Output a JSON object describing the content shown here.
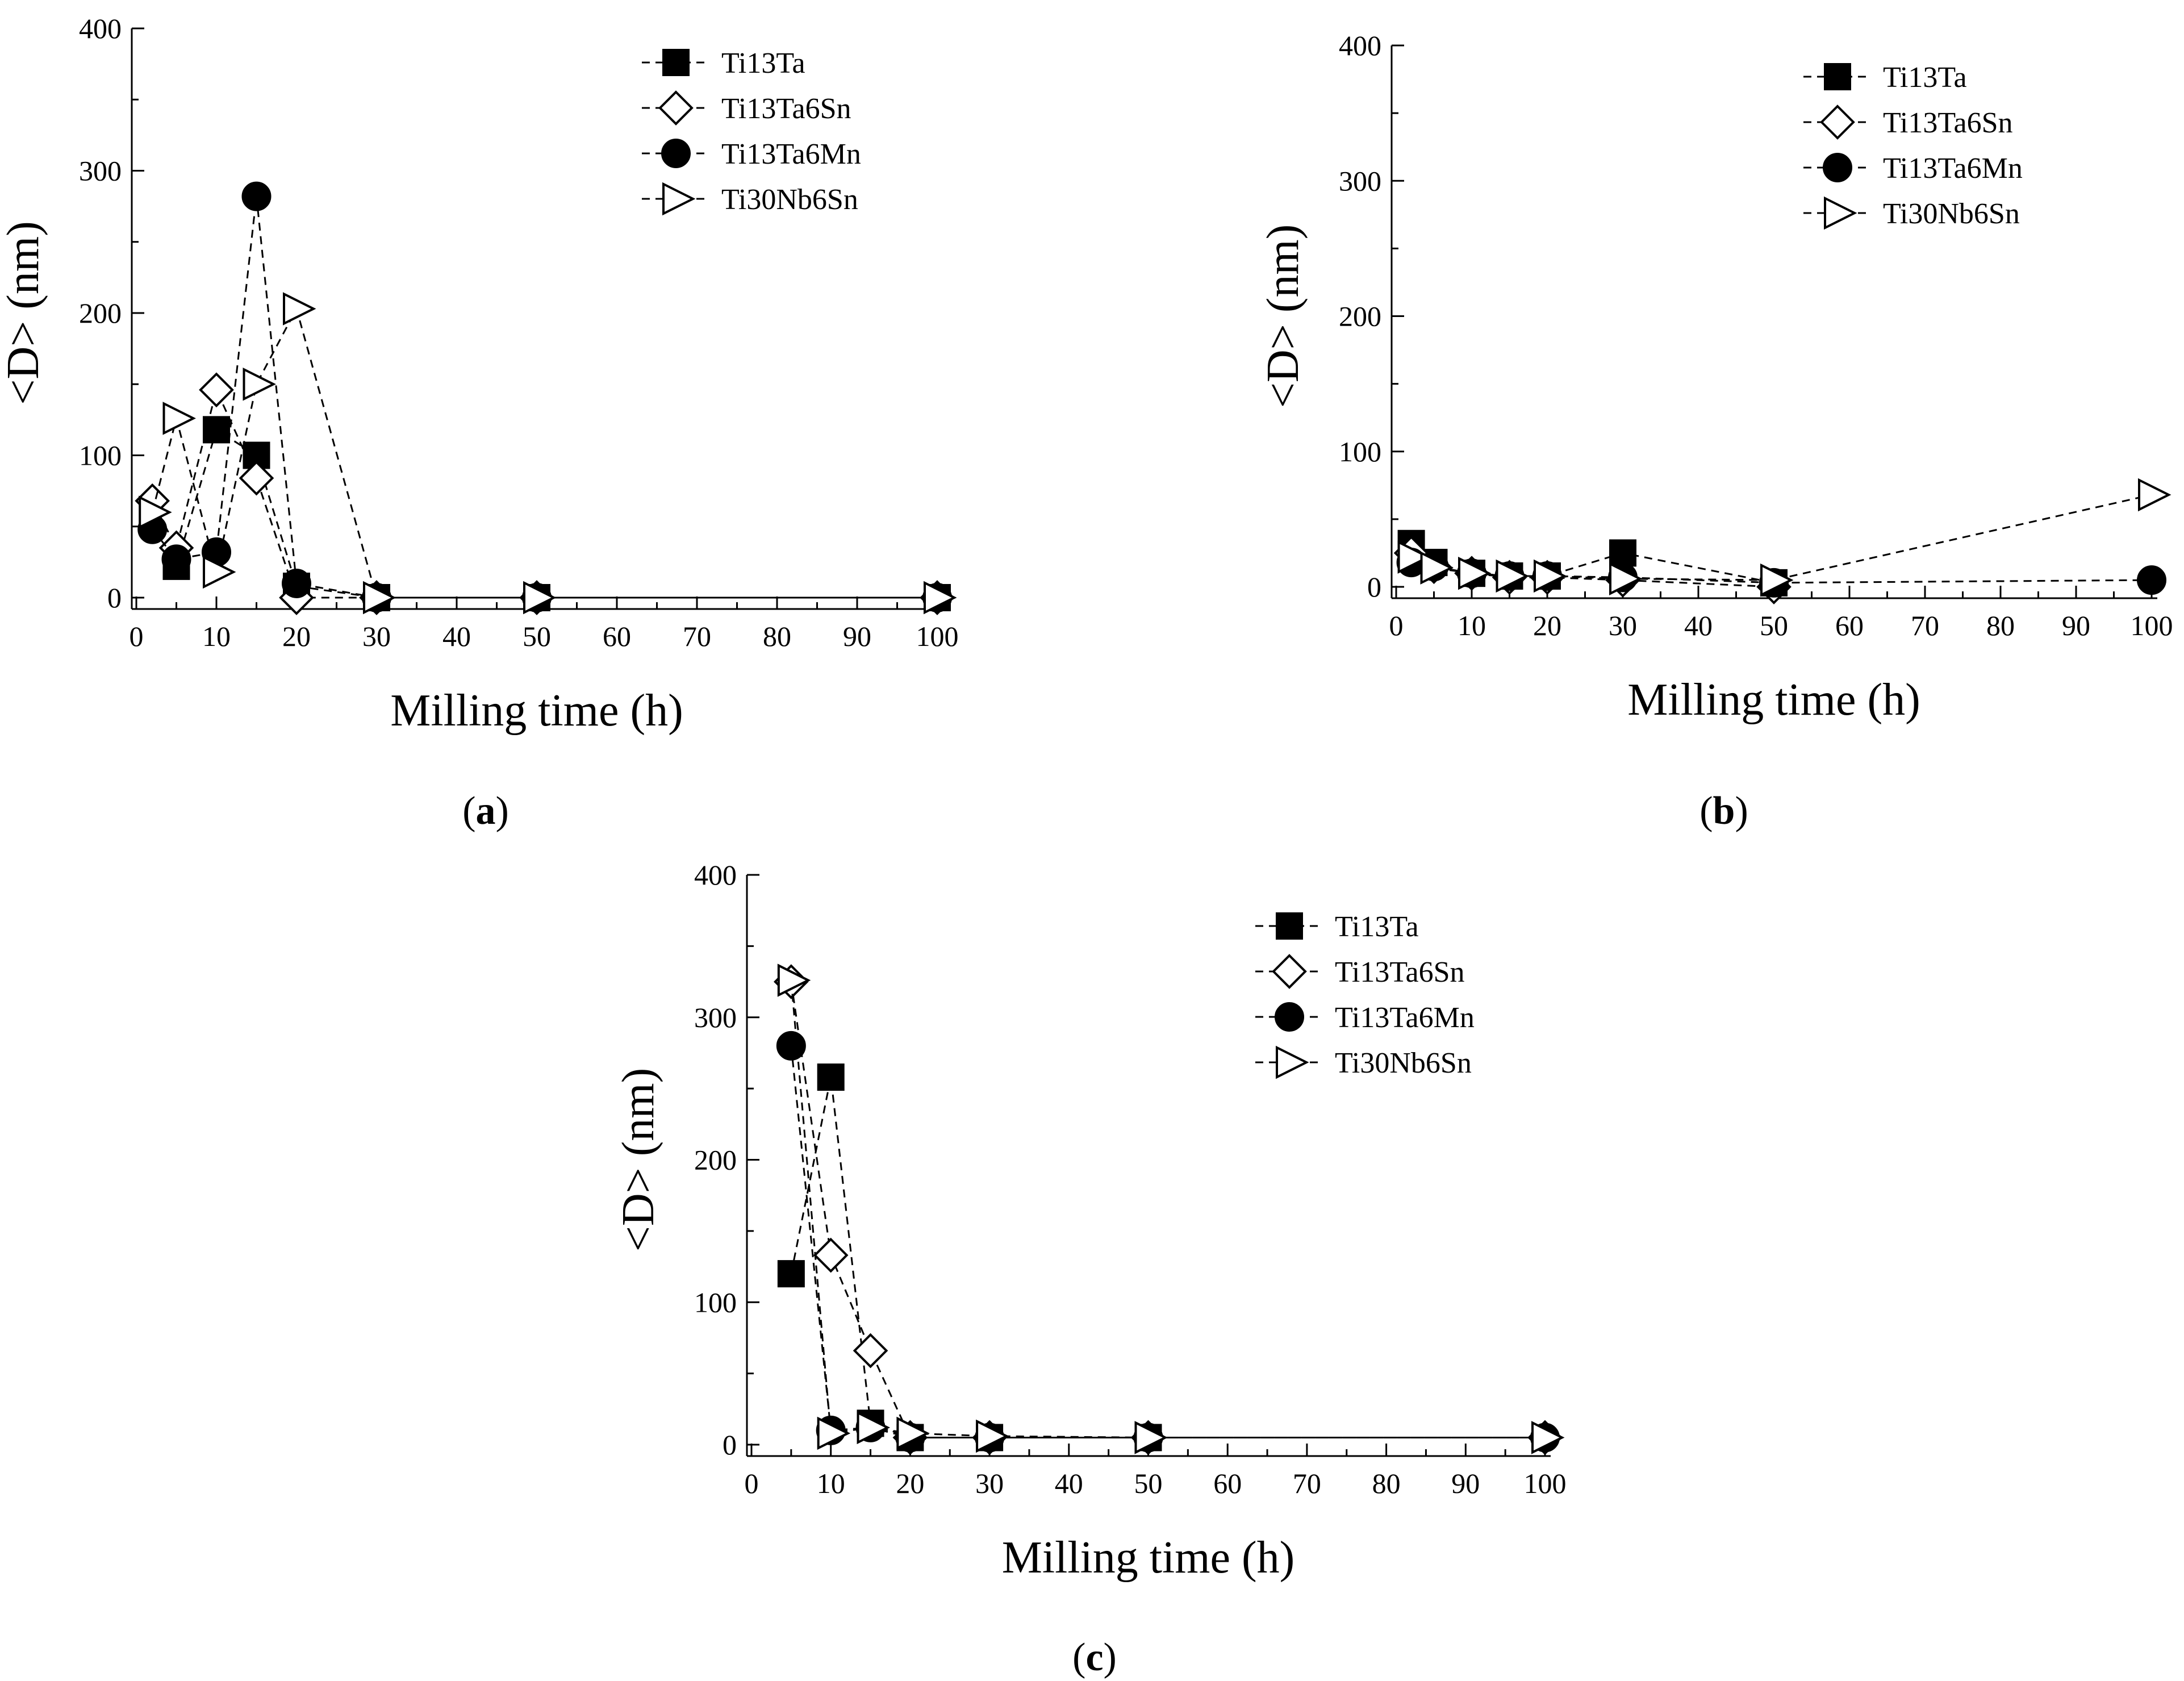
{
  "chart_data": [
    {
      "type": "line",
      "panel": "a",
      "xlabel": "Milling time (h)",
      "ylabel": "<D> (nm)",
      "xlim": [
        0,
        100
      ],
      "ylim": [
        0,
        400
      ],
      "xticks": [
        0,
        10,
        20,
        30,
        40,
        50,
        60,
        70,
        80,
        90,
        100
      ],
      "yticks": [
        0,
        100,
        200,
        300,
        400
      ],
      "legend_position": "top-right",
      "series": [
        {
          "name": "Ti13Ta",
          "marker": "square",
          "x": [
            5,
            10,
            15,
            20,
            30,
            50,
            100
          ],
          "y": [
            22,
            118,
            100,
            8,
            0,
            0,
            0
          ]
        },
        {
          "name": "Ti13Ta6Sn",
          "marker": "diamond",
          "x": [
            2,
            5,
            10,
            15,
            20,
            30,
            50,
            100
          ],
          "y": [
            68,
            35,
            146,
            84,
            0,
            0,
            0,
            0
          ]
        },
        {
          "name": "Ti13Ta6Mn",
          "marker": "circle",
          "x": [
            2,
            5,
            10,
            15,
            20,
            30,
            50,
            100
          ],
          "y": [
            48,
            27,
            32,
            282,
            10,
            0,
            0,
            0
          ]
        },
        {
          "name": "Ti30Nb6Sn",
          "marker": "triangle-right",
          "x": [
            2,
            5,
            10,
            15,
            20,
            30,
            50,
            100
          ],
          "y": [
            60,
            126,
            18,
            150,
            203,
            0,
            0,
            0
          ]
        }
      ]
    },
    {
      "type": "line",
      "panel": "b",
      "xlabel": "Milling time (h)",
      "ylabel": "<D> (nm)",
      "xlim": [
        0,
        100
      ],
      "ylim": [
        0,
        400
      ],
      "xticks": [
        0,
        10,
        20,
        30,
        40,
        50,
        60,
        70,
        80,
        90,
        100
      ],
      "yticks": [
        0,
        100,
        200,
        300,
        400
      ],
      "legend_position": "top-right",
      "series": [
        {
          "name": "Ti13Ta",
          "marker": "square",
          "x": [
            2,
            5,
            10,
            15,
            20,
            30,
            50
          ],
          "y": [
            32,
            18,
            10,
            8,
            8,
            25,
            3
          ]
        },
        {
          "name": "Ti13Ta6Sn",
          "marker": "diamond",
          "x": [
            2,
            5,
            10,
            15,
            20,
            30,
            50
          ],
          "y": [
            25,
            15,
            10,
            7,
            7,
            5,
            0
          ]
        },
        {
          "name": "Ti13Ta6Mn",
          "marker": "circle",
          "x": [
            2,
            5,
            10,
            15,
            20,
            30,
            50,
            100
          ],
          "y": [
            18,
            15,
            10,
            8,
            8,
            7,
            3,
            5
          ]
        },
        {
          "name": "Ti30Nb6Sn",
          "marker": "triangle-right",
          "x": [
            2,
            5,
            10,
            15,
            20,
            30,
            50,
            100
          ],
          "y": [
            22,
            14,
            10,
            8,
            8,
            6,
            5,
            68
          ]
        }
      ]
    },
    {
      "type": "line",
      "panel": "c",
      "xlabel": "Milling time (h)",
      "ylabel": "<D> (nm)",
      "xlim": [
        0,
        100
      ],
      "ylim": [
        0,
        400
      ],
      "xticks": [
        0,
        10,
        20,
        30,
        40,
        50,
        60,
        70,
        80,
        90,
        100
      ],
      "yticks": [
        0,
        100,
        200,
        300,
        400
      ],
      "legend_position": "top-right",
      "series": [
        {
          "name": "Ti13Ta",
          "marker": "square",
          "x": [
            5,
            10,
            15,
            20,
            30,
            50
          ],
          "y": [
            120,
            258,
            15,
            5,
            5,
            5
          ]
        },
        {
          "name": "Ti13Ta6Sn",
          "marker": "diamond",
          "x": [
            5,
            10,
            15,
            20,
            30,
            50,
            100
          ],
          "y": [
            325,
            133,
            66,
            5,
            5,
            5,
            5
          ]
        },
        {
          "name": "Ti13Ta6Mn",
          "marker": "circle",
          "x": [
            5,
            10,
            15,
            20,
            30,
            50,
            100
          ],
          "y": [
            280,
            10,
            12,
            5,
            5,
            5,
            5
          ]
        },
        {
          "name": "Ti30Nb6Sn",
          "marker": "triangle-right",
          "x": [
            5,
            10,
            15,
            20,
            30,
            50,
            100
          ],
          "y": [
            326,
            8,
            12,
            8,
            6,
            5,
            5
          ]
        }
      ]
    }
  ],
  "panel_labels": [
    "(a)",
    "(b)",
    "(c)"
  ]
}
